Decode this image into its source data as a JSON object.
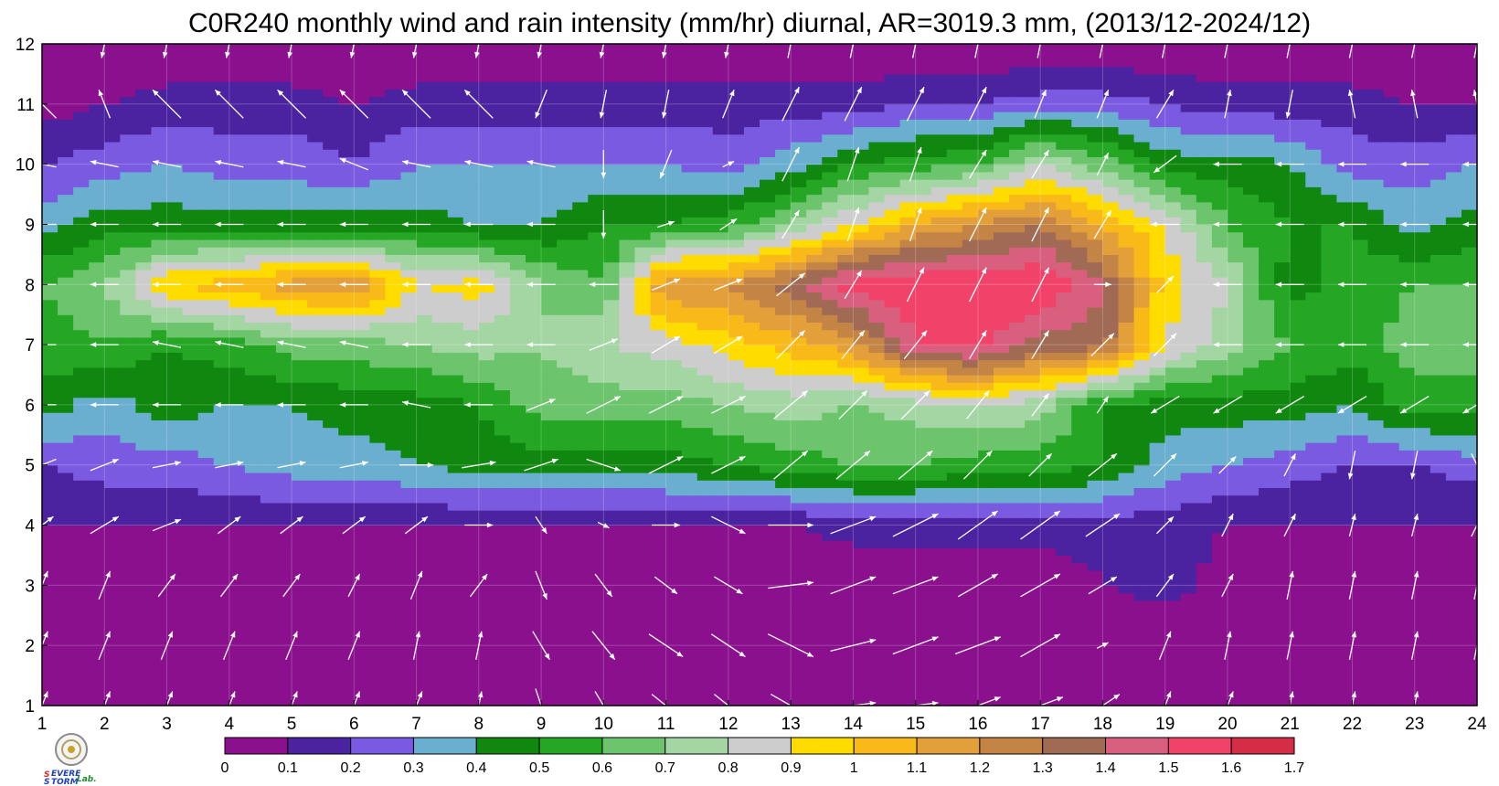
{
  "chart_data": {
    "type": "heatmap",
    "title": "C0R240 monthly wind and rain intensity (mm/hr) diurnal, AR=3019.3 mm, (2013/12-2024/12)",
    "xlabel": "",
    "ylabel": "",
    "x_ticks": [
      "1",
      "2",
      "3",
      "4",
      "5",
      "6",
      "7",
      "8",
      "9",
      "10",
      "11",
      "12",
      "13",
      "14",
      "15",
      "16",
      "17",
      "18",
      "19",
      "20",
      "21",
      "22",
      "23",
      "24"
    ],
    "y_ticks": [
      "1",
      "2",
      "3",
      "4",
      "5",
      "6",
      "7",
      "8",
      "9",
      "10",
      "11",
      "12"
    ],
    "xlim": [
      1,
      24
    ],
    "ylim": [
      1,
      12
    ],
    "grid": true,
    "colorbar": {
      "placement": "bottom",
      "levels": [
        0,
        0.1,
        0.2,
        0.3,
        0.4,
        0.5,
        0.6,
        0.7,
        0.8,
        0.9,
        1,
        1.1,
        1.2,
        1.3,
        1.4,
        1.5,
        1.6,
        1.7
      ],
      "labels": [
        "0",
        "0.1",
        "0.2",
        "0.3",
        "0.4",
        "0.5",
        "0.6",
        "0.7",
        "0.8",
        "0.9",
        "1",
        "1.1",
        "1.2",
        "1.3",
        "1.4",
        "1.5",
        "1.6",
        "1.7"
      ],
      "colors": [
        "#8b108d",
        "#4b23a0",
        "#7a5ae0",
        "#6aaed0",
        "#10870f",
        "#25a625",
        "#6cc46c",
        "#a3d6a3",
        "#cdcdcd",
        "#ffdc00",
        "#f9b918",
        "#e3a03a",
        "#c48445",
        "#a06a55",
        "#d8607e",
        "#f1436a",
        "#d52d45"
      ]
    },
    "rows_y": [
      1,
      2,
      3,
      4,
      5,
      6,
      7,
      8,
      9,
      10,
      11,
      12
    ],
    "x": [
      1,
      2,
      3,
      4,
      5,
      6,
      7,
      8,
      9,
      10,
      11,
      12,
      13,
      14,
      15,
      16,
      17,
      18,
      19,
      20,
      21,
      22,
      23,
      24
    ],
    "values": [
      [
        0.0,
        0.0,
        0.0,
        0.0,
        0.0,
        0.0,
        0.0,
        0.0,
        0.1,
        0.1,
        0.0,
        0.0,
        0.0,
        0.0,
        0.0,
        0.0,
        0.0,
        0.0,
        0.0,
        0.0,
        0.0,
        0.0,
        0.0,
        0.0
      ],
      [
        0.0,
        0.0,
        0.0,
        0.0,
        0.0,
        0.0,
        0.0,
        0.0,
        0.0,
        0.0,
        0.0,
        0.0,
        0.0,
        0.0,
        0.0,
        0.0,
        0.0,
        0.0,
        0.0,
        0.0,
        0.0,
        0.0,
        0.0,
        0.0
      ],
      [
        0.0,
        0.0,
        0.1,
        0.05,
        0.0,
        0.0,
        0.0,
        0.0,
        0.0,
        0.0,
        0.0,
        0.0,
        0.0,
        0.0,
        0.0,
        0.0,
        0.0,
        0.1,
        0.15,
        0.05,
        0.0,
        0.0,
        0.0,
        0.0
      ],
      [
        0.1,
        0.1,
        0.1,
        0.1,
        0.1,
        0.1,
        0.1,
        0.1,
        0.1,
        0.1,
        0.1,
        0.1,
        0.1,
        0.15,
        0.15,
        0.15,
        0.15,
        0.15,
        0.15,
        0.1,
        0.1,
        0.1,
        0.1,
        0.1
      ],
      [
        0.2,
        0.25,
        0.25,
        0.3,
        0.35,
        0.35,
        0.4,
        0.45,
        0.45,
        0.45,
        0.45,
        0.5,
        0.55,
        0.6,
        0.6,
        0.55,
        0.55,
        0.5,
        0.35,
        0.3,
        0.25,
        0.2,
        0.2,
        0.25
      ],
      [
        0.45,
        0.35,
        0.45,
        0.4,
        0.4,
        0.45,
        0.45,
        0.5,
        0.65,
        0.65,
        0.65,
        0.7,
        0.75,
        0.7,
        0.75,
        0.8,
        0.75,
        0.5,
        0.45,
        0.45,
        0.45,
        0.4,
        0.55,
        0.55
      ],
      [
        0.55,
        0.6,
        0.5,
        0.55,
        0.65,
        0.65,
        0.7,
        0.75,
        0.7,
        0.8,
        0.85,
        0.95,
        1.05,
        1.15,
        1.5,
        1.55,
        1.35,
        1.35,
        0.9,
        0.75,
        0.6,
        0.55,
        0.65,
        0.65
      ],
      [
        0.6,
        0.7,
        1.0,
        1.05,
        1.15,
        1.2,
        0.9,
        0.95,
        0.7,
        0.6,
        1.2,
        1.2,
        1.35,
        1.55,
        1.6,
        1.6,
        1.6,
        1.4,
        0.95,
        0.8,
        0.45,
        0.55,
        0.6,
        0.6
      ],
      [
        0.35,
        0.45,
        0.45,
        0.45,
        0.45,
        0.45,
        0.45,
        0.4,
        0.4,
        0.5,
        0.5,
        0.55,
        0.7,
        0.9,
        1.1,
        1.2,
        1.3,
        1.1,
        0.9,
        0.6,
        0.5,
        0.5,
        0.35,
        0.45
      ],
      [
        0.2,
        0.25,
        0.3,
        0.25,
        0.25,
        0.2,
        0.3,
        0.3,
        0.3,
        0.3,
        0.3,
        0.25,
        0.35,
        0.5,
        0.55,
        0.6,
        0.8,
        0.65,
        0.45,
        0.45,
        0.4,
        0.25,
        0.25,
        0.3
      ],
      [
        0.05,
        0.1,
        0.15,
        0.15,
        0.15,
        0.1,
        0.15,
        0.15,
        0.15,
        0.15,
        0.15,
        0.15,
        0.15,
        0.15,
        0.2,
        0.2,
        0.25,
        0.25,
        0.2,
        0.15,
        0.15,
        0.15,
        0.1,
        0.1
      ],
      [
        0.0,
        0.0,
        0.0,
        0.0,
        0.0,
        0.0,
        0.0,
        0.0,
        0.0,
        0.0,
        0.0,
        0.0,
        0.0,
        0.0,
        0.0,
        0.0,
        0.0,
        0.0,
        0.0,
        0.0,
        0.0,
        0.0,
        0.0,
        0.0
      ]
    ],
    "wind_u": [
      [
        0.2,
        0.2,
        0.2,
        0.2,
        0.2,
        0.2,
        0.2,
        0.1,
        0.2,
        0.3,
        0.5,
        0.5,
        0.7,
        0.8,
        0.8,
        0.8,
        0.8,
        0.6,
        0.2,
        0.2,
        0.1,
        0.1,
        0.1,
        0.1
      ],
      [
        0.2,
        0.2,
        0.2,
        0.2,
        0.2,
        0.2,
        0.1,
        0.1,
        0.3,
        0.4,
        0.6,
        0.6,
        0.8,
        0.8,
        0.8,
        0.8,
        0.7,
        0.2,
        0.2,
        0.1,
        0.1,
        0.1,
        0.1,
        0.1
      ],
      [
        0.2,
        0.2,
        0.3,
        0.3,
        0.3,
        0.2,
        0.2,
        0.3,
        0.2,
        0.3,
        0.4,
        0.5,
        0.8,
        0.8,
        0.8,
        0.7,
        0.7,
        0.5,
        0.3,
        0.2,
        0.1,
        0.1,
        0.1,
        0.1
      ],
      [
        0.4,
        0.5,
        0.5,
        0.4,
        0.4,
        0.4,
        0.4,
        0.5,
        0.2,
        0.2,
        0.5,
        0.6,
        0.8,
        0.8,
        0.8,
        0.7,
        0.7,
        0.6,
        0.3,
        0.2,
        0.2,
        0.1,
        0.1,
        0.2
      ],
      [
        -0.5,
        0.5,
        0.5,
        0.5,
        0.5,
        0.5,
        0.6,
        0.6,
        0.6,
        0.6,
        0.6,
        0.6,
        0.6,
        0.6,
        0.6,
        0.5,
        0.4,
        0.5,
        0.4,
        0.3,
        0.2,
        -0.1,
        -0.1,
        0.2
      ],
      [
        -0.5,
        -0.5,
        -0.5,
        -0.5,
        -0.5,
        -0.5,
        -0.5,
        -0.5,
        0.5,
        0.6,
        0.6,
        0.6,
        0.6,
        0.5,
        0.5,
        0.4,
        0.3,
        0.2,
        -0.5,
        -0.5,
        -0.5,
        -0.5,
        -0.5,
        -0.5
      ],
      [
        -0.5,
        -0.5,
        -0.5,
        -0.5,
        -0.5,
        -0.5,
        -0.5,
        -0.5,
        -0.5,
        0.5,
        0.5,
        0.5,
        0.5,
        0.4,
        0.4,
        0.3,
        0.3,
        0.4,
        0.4,
        -0.5,
        -0.5,
        -0.5,
        -0.5,
        -0.5
      ],
      [
        -0.5,
        -0.5,
        -0.5,
        -0.5,
        -0.5,
        -0.5,
        -0.5,
        -0.5,
        -0.5,
        -0.5,
        0.5,
        0.5,
        0.5,
        0.3,
        0.3,
        0.3,
        0.3,
        0.3,
        0.3,
        -0.5,
        -0.5,
        -0.5,
        -0.5,
        -0.5
      ],
      [
        -0.5,
        -0.5,
        -0.5,
        -0.5,
        -0.5,
        -0.5,
        -0.5,
        -0.5,
        -0.5,
        0.0,
        0.3,
        0.3,
        0.3,
        0.2,
        0.2,
        0.3,
        0.3,
        0.3,
        -0.5,
        -0.5,
        -0.5,
        -0.5,
        -0.5,
        -0.5
      ],
      [
        -0.5,
        -0.5,
        -0.5,
        -0.5,
        -0.5,
        -0.5,
        -0.5,
        -0.5,
        -0.5,
        0.0,
        -0.2,
        0.2,
        0.3,
        0.2,
        0.2,
        0.3,
        0.3,
        0.2,
        -0.4,
        -0.5,
        -0.5,
        -0.5,
        -0.5,
        -0.5
      ],
      [
        -0.5,
        -0.2,
        -0.5,
        -0.5,
        -0.5,
        -0.5,
        -0.5,
        -0.5,
        -0.2,
        -0.1,
        -0.1,
        0.2,
        0.3,
        0.3,
        0.3,
        0.3,
        0.2,
        0.2,
        0.3,
        0.1,
        -0.1,
        -0.1,
        -0.1,
        -0.1
      ],
      [
        -0.1,
        -0.1,
        -0.1,
        -0.1,
        -0.1,
        -0.1,
        -0.1,
        -0.1,
        -0.1,
        -0.1,
        -0.1,
        -0.1,
        0.1,
        0.1,
        0.1,
        0.1,
        0.1,
        0.1,
        0.1,
        0.1,
        0.1,
        0.1,
        0.1,
        0.1
      ]
    ],
    "wind_v": [
      [
        0.5,
        0.5,
        0.5,
        0.5,
        0.5,
        0.5,
        0.5,
        0.5,
        -0.6,
        -0.5,
        -0.4,
        -0.4,
        -0.4,
        0.1,
        0.1,
        0.3,
        0.3,
        0.4,
        0.5,
        0.5,
        0.5,
        0.5,
        0.5,
        0.5
      ],
      [
        0.5,
        0.5,
        0.5,
        0.5,
        0.5,
        0.5,
        0.5,
        0.5,
        -0.5,
        -0.5,
        -0.4,
        -0.4,
        -0.4,
        0.2,
        0.3,
        0.3,
        0.4,
        0.1,
        0.5,
        0.5,
        0.5,
        0.5,
        0.5,
        0.5
      ],
      [
        0.5,
        0.5,
        0.4,
        0.4,
        0.4,
        0.4,
        0.5,
        0.4,
        -0.5,
        -0.4,
        -0.3,
        -0.3,
        0.1,
        0.3,
        0.3,
        0.4,
        0.4,
        0.3,
        0.4,
        0.4,
        0.5,
        0.5,
        0.5,
        0.5
      ],
      [
        0.3,
        0.3,
        0.2,
        0.3,
        0.3,
        0.3,
        0.3,
        0.0,
        -0.3,
        -0.1,
        0.0,
        -0.3,
        0.0,
        0.3,
        0.4,
        0.5,
        0.5,
        0.4,
        0.3,
        0.4,
        0.4,
        0.4,
        0.4,
        0.4
      ],
      [
        -0.2,
        0.2,
        0.1,
        0.1,
        0.1,
        0.1,
        0.0,
        0.1,
        0.2,
        -0.2,
        0.3,
        0.3,
        0.5,
        0.5,
        0.5,
        0.5,
        0.4,
        0.4,
        0.4,
        0.3,
        0.4,
        -0.5,
        -0.5,
        -0.4
      ],
      [
        0.0,
        0.0,
        0.0,
        0.0,
        0.0,
        0.0,
        0.1,
        0.0,
        0.2,
        0.3,
        0.3,
        0.3,
        0.5,
        0.5,
        0.5,
        0.5,
        0.4,
        0.3,
        -0.3,
        -0.3,
        -0.3,
        -0.3,
        -0.3,
        -0.3
      ],
      [
        0.0,
        0.0,
        0.1,
        0.1,
        0.1,
        0.1,
        0.0,
        0.0,
        0.0,
        0.2,
        0.3,
        0.3,
        0.5,
        0.5,
        0.5,
        0.5,
        0.5,
        0.4,
        0.4,
        0.0,
        0.0,
        0.0,
        0.0,
        0.0
      ],
      [
        0.0,
        0.0,
        0.0,
        0.0,
        0.0,
        0.0,
        0.0,
        0.0,
        0.0,
        0.0,
        0.2,
        0.2,
        0.4,
        0.5,
        0.6,
        0.6,
        0.6,
        0.0,
        0.3,
        0.0,
        0.0,
        0.0,
        0.0,
        0.0
      ],
      [
        0.0,
        0.0,
        0.0,
        0.0,
        0.0,
        0.0,
        0.0,
        0.0,
        0.0,
        -0.5,
        0.1,
        0.2,
        0.5,
        0.6,
        0.6,
        0.6,
        0.6,
        0.5,
        0.0,
        0.0,
        0.0,
        0.0,
        0.0,
        0.0
      ],
      [
        0.1,
        0.1,
        0.1,
        0.1,
        0.1,
        0.2,
        0.1,
        0.1,
        0.1,
        -0.5,
        -0.5,
        0.1,
        0.6,
        0.6,
        0.6,
        0.5,
        0.5,
        0.4,
        -0.3,
        0.0,
        0.0,
        0.0,
        0.0,
        0.0
      ],
      [
        0.5,
        0.5,
        0.5,
        0.5,
        0.5,
        0.5,
        0.5,
        0.5,
        -0.5,
        -0.5,
        -0.5,
        0.5,
        0.6,
        0.6,
        0.6,
        0.6,
        0.5,
        0.5,
        0.5,
        0.5,
        -0.5,
        0.5,
        0.5,
        0.5
      ],
      [
        -0.5,
        -0.5,
        -0.5,
        -0.5,
        -0.5,
        -0.5,
        -0.5,
        -0.5,
        -0.5,
        -0.5,
        -0.5,
        -0.5,
        0.5,
        0.5,
        0.5,
        0.5,
        0.5,
        0.5,
        0.5,
        0.5,
        0.5,
        0.5,
        0.5,
        0.5
      ]
    ]
  }
}
